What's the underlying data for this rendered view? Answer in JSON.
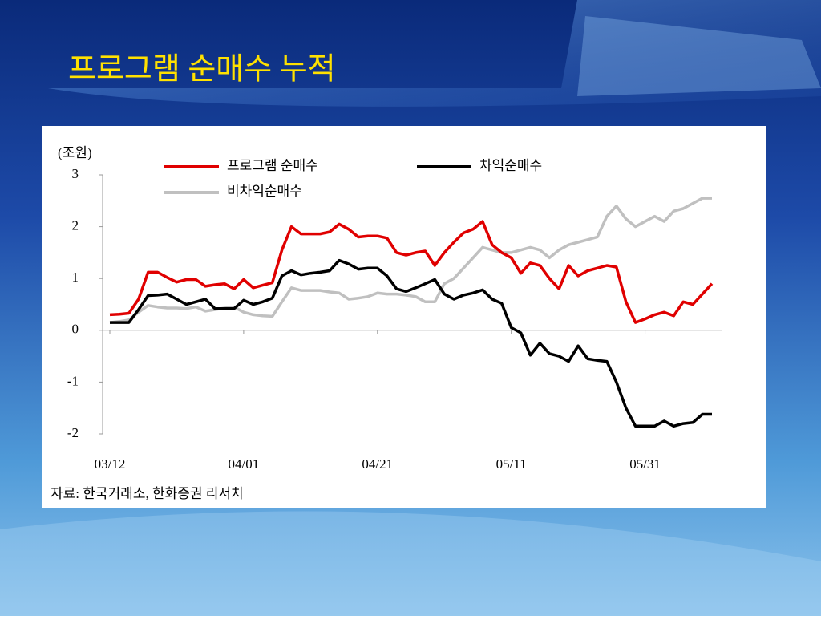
{
  "chart_data": {
    "type": "line",
    "title": "프로그램 순매수 누적",
    "y_label": "(조원)",
    "source": "자료: 한국거래소, 한화증권 리서치",
    "categories": [
      "03/12",
      null,
      null,
      null,
      null,
      null,
      null,
      null,
      null,
      null,
      null,
      null,
      null,
      null,
      "04/01",
      null,
      null,
      null,
      null,
      null,
      null,
      null,
      null,
      null,
      null,
      null,
      null,
      null,
      "04/21",
      null,
      null,
      null,
      null,
      null,
      null,
      null,
      null,
      null,
      null,
      null,
      null,
      null,
      "05/11",
      null,
      null,
      null,
      null,
      null,
      null,
      null,
      null,
      null,
      null,
      null,
      null,
      null,
      "05/31",
      null,
      null,
      null,
      null,
      null,
      null,
      null
    ],
    "series": [
      {
        "name": "프로그램 순매수",
        "color": "#e00000",
        "values": [
          0.3,
          0.31,
          0.33,
          0.6,
          1.12,
          1.12,
          1.02,
          0.93,
          0.98,
          0.98,
          0.85,
          0.88,
          0.9,
          0.8,
          0.98,
          0.82,
          0.87,
          0.92,
          1.55,
          2.0,
          1.86,
          1.86,
          1.86,
          1.9,
          2.05,
          1.95,
          1.8,
          1.82,
          1.82,
          1.78,
          1.5,
          1.45,
          1.5,
          1.53,
          1.25,
          1.5,
          1.7,
          1.88,
          1.95,
          2.1,
          1.65,
          1.5,
          1.4,
          1.1,
          1.3,
          1.25,
          1.0,
          0.8,
          1.25,
          1.05,
          1.15,
          1.2,
          1.25,
          1.22,
          0.55,
          0.15,
          0.22,
          0.3,
          0.35,
          0.28,
          0.55,
          0.5,
          0.7,
          0.9
        ]
      },
      {
        "name": "차익순매수",
        "color": "#000000",
        "values": [
          0.15,
          0.15,
          0.15,
          0.4,
          0.67,
          0.68,
          0.7,
          0.6,
          0.5,
          0.55,
          0.6,
          0.42,
          0.42,
          0.42,
          0.58,
          0.5,
          0.55,
          0.62,
          1.05,
          1.15,
          1.07,
          1.1,
          1.12,
          1.15,
          1.35,
          1.28,
          1.18,
          1.2,
          1.2,
          1.05,
          0.8,
          0.75,
          0.82,
          0.9,
          0.98,
          0.7,
          0.6,
          0.68,
          0.72,
          0.78,
          0.6,
          0.52,
          0.05,
          -0.05,
          -0.48,
          -0.25,
          -0.45,
          -0.5,
          -0.6,
          -0.3,
          -0.55,
          -0.58,
          -0.6,
          -1.0,
          -1.5,
          -1.85,
          -1.85,
          -1.85,
          -1.75,
          -1.85,
          -1.8,
          -1.78,
          -1.62,
          -1.62
        ]
      },
      {
        "name": "비차익순매수",
        "color": "#c0c0c0",
        "values": [
          0.15,
          0.17,
          0.2,
          0.35,
          0.48,
          0.45,
          0.43,
          0.43,
          0.42,
          0.45,
          0.37,
          0.4,
          0.43,
          0.45,
          0.35,
          0.3,
          0.28,
          0.27,
          0.55,
          0.82,
          0.77,
          0.77,
          0.77,
          0.74,
          0.72,
          0.6,
          0.62,
          0.65,
          0.72,
          0.7,
          0.7,
          0.68,
          0.65,
          0.55,
          0.55,
          0.9,
          1.0,
          1.2,
          1.4,
          1.6,
          1.55,
          1.5,
          1.5,
          1.55,
          1.6,
          1.55,
          1.4,
          1.55,
          1.65,
          1.7,
          1.75,
          1.8,
          2.2,
          2.4,
          2.15,
          2.0,
          2.1,
          2.2,
          2.1,
          2.3,
          2.35,
          2.45,
          2.55,
          2.55
        ]
      }
    ],
    "ylim": [
      -2,
      3
    ],
    "yticks": [
      -2,
      -1,
      0,
      1,
      2,
      3
    ]
  }
}
